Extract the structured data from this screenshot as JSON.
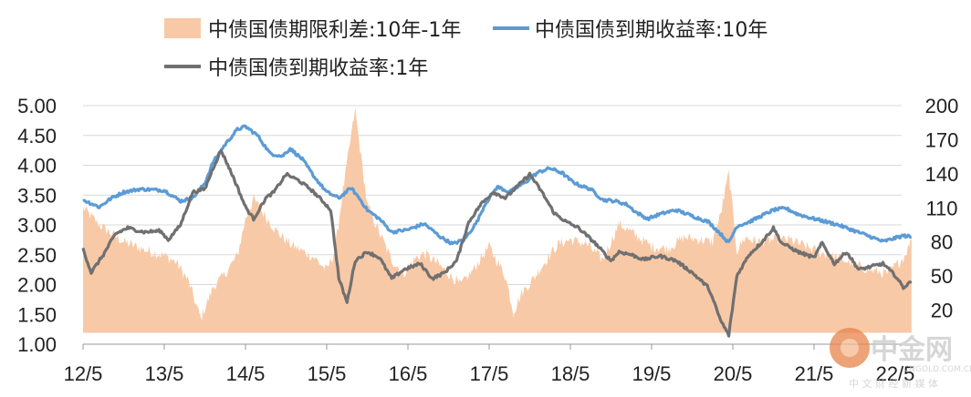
{
  "chart_data": {
    "type": "line",
    "title": "",
    "legend_position": "top",
    "grid": true,
    "x_tick_labels": [
      "12/5",
      "13/5",
      "14/5",
      "15/5",
      "16/5",
      "17/5",
      "18/5",
      "19/5",
      "20/5",
      "21/5",
      "22/5"
    ],
    "y_left": {
      "ticks": [
        "1.00",
        "1.50",
        "2.00",
        "2.50",
        "3.00",
        "3.50",
        "4.00",
        "4.50",
        "5.00"
      ],
      "range": [
        1.0,
        5.0
      ]
    },
    "y_right": {
      "ticks": [
        "20",
        "50",
        "80",
        "110",
        "140",
        "170",
        "200"
      ],
      "range": [
        -10,
        200
      ]
    },
    "series": [
      {
        "name": "中债国债期限利差:10年-1年",
        "type": "area",
        "axis": "right",
        "color": "#F8C9A6",
        "x": [
          0,
          0.2,
          0.5,
          0.8,
          1,
          1.15,
          1.3,
          1.45,
          1.6,
          1.75,
          1.9,
          2.0,
          2.1,
          2.25,
          2.4,
          2.55,
          2.7,
          2.85,
          3.0,
          3.1,
          3.2,
          3.35,
          3.5,
          3.65,
          3.8,
          3.95,
          4.0,
          4.1,
          4.2,
          4.35,
          4.5,
          4.65,
          4.8,
          5.0,
          5.2,
          5.3,
          5.4,
          5.55,
          5.7,
          5.85,
          6.0,
          6.2,
          6.4,
          6.6,
          6.8,
          7.0,
          7.2,
          7.4,
          7.6,
          7.75,
          7.85,
          7.95,
          8.05,
          8.15,
          8.3,
          8.5,
          8.7,
          8.9,
          9.1,
          9.3,
          9.5,
          9.7,
          9.9,
          10.1,
          10.2
        ],
        "values": [
          110,
          95,
          80,
          72,
          68,
          62,
          45,
          12,
          40,
          52,
          68,
          100,
          118,
          102,
          88,
          78,
          72,
          66,
          55,
          72,
          125,
          196,
          112,
          88,
          64,
          52,
          58,
          66,
          70,
          62,
          52,
          42,
          55,
          76,
          50,
          18,
          35,
          48,
          64,
          78,
          82,
          78,
          64,
          96,
          86,
          76,
          74,
          84,
          82,
          80,
          104,
          141,
          72,
          84,
          80,
          82,
          82,
          76,
          70,
          66,
          60,
          55,
          52,
          66,
          82
        ]
      },
      {
        "name": "中债国债到期收益率:10年",
        "type": "line",
        "axis": "left",
        "color": "#5B9BD5",
        "x": [
          0,
          0.2,
          0.35,
          0.5,
          0.7,
          1.0,
          1.2,
          1.35,
          1.5,
          1.6,
          1.75,
          1.9,
          2.0,
          2.15,
          2.3,
          2.45,
          2.55,
          2.7,
          2.85,
          3.0,
          3.15,
          3.3,
          3.4,
          3.5,
          3.65,
          3.8,
          4.0,
          4.2,
          4.4,
          4.55,
          4.7,
          4.85,
          4.95,
          5.1,
          5.25,
          5.45,
          5.6,
          5.75,
          5.9,
          6.0,
          6.1,
          6.25,
          6.4,
          6.55,
          6.7,
          6.8,
          6.95,
          7.1,
          7.3,
          7.5,
          7.7,
          7.85,
          7.95,
          8.05,
          8.2,
          8.35,
          8.5,
          8.65,
          8.8,
          8.95,
          9.1,
          9.3,
          9.5,
          9.7,
          9.85,
          10.0,
          10.1,
          10.2
        ],
        "values": [
          3.42,
          3.3,
          3.45,
          3.55,
          3.6,
          3.58,
          3.4,
          3.45,
          3.7,
          4.05,
          4.35,
          4.6,
          4.65,
          4.5,
          4.2,
          4.15,
          4.28,
          4.1,
          3.8,
          3.55,
          3.45,
          3.62,
          3.45,
          3.25,
          3.1,
          2.88,
          2.92,
          3.02,
          2.8,
          2.68,
          2.76,
          3.05,
          3.35,
          3.64,
          3.55,
          3.72,
          3.88,
          3.95,
          3.87,
          3.75,
          3.67,
          3.6,
          3.42,
          3.4,
          3.34,
          3.22,
          3.1,
          3.18,
          3.25,
          3.15,
          3.05,
          2.85,
          2.7,
          2.98,
          3.05,
          3.15,
          3.25,
          3.28,
          3.18,
          3.12,
          3.07,
          3.0,
          2.9,
          2.8,
          2.72,
          2.78,
          2.82,
          2.8
        ]
      },
      {
        "name": "中债国债到期收益率:1年",
        "type": "line",
        "axis": "left",
        "color": "#707070",
        "x": [
          0,
          0.1,
          0.25,
          0.4,
          0.55,
          0.75,
          0.95,
          1.05,
          1.2,
          1.35,
          1.5,
          1.6,
          1.7,
          1.85,
          2.0,
          2.1,
          2.25,
          2.35,
          2.5,
          2.65,
          2.8,
          2.95,
          3.05,
          3.15,
          3.25,
          3.35,
          3.5,
          3.65,
          3.8,
          3.95,
          4.15,
          4.3,
          4.45,
          4.6,
          4.75,
          4.9,
          5.05,
          5.2,
          5.35,
          5.5,
          5.65,
          5.8,
          5.95,
          6.1,
          6.3,
          6.5,
          6.6,
          6.75,
          6.9,
          7.1,
          7.3,
          7.5,
          7.7,
          7.85,
          7.95,
          8.05,
          8.2,
          8.35,
          8.5,
          8.6,
          8.8,
          9.0,
          9.1,
          9.25,
          9.4,
          9.55,
          9.7,
          9.85,
          10.0,
          10.1,
          10.2
        ],
        "values": [
          2.6,
          2.2,
          2.5,
          2.85,
          2.95,
          2.88,
          2.9,
          2.75,
          3.0,
          3.55,
          3.6,
          3.95,
          4.25,
          3.8,
          3.3,
          3.1,
          3.45,
          3.55,
          3.85,
          3.75,
          3.6,
          3.4,
          3.25,
          2.1,
          1.7,
          2.4,
          2.55,
          2.45,
          2.1,
          2.25,
          2.35,
          2.1,
          2.2,
          2.4,
          3.05,
          3.35,
          3.55,
          3.45,
          3.65,
          3.85,
          3.55,
          3.2,
          3.05,
          2.95,
          2.7,
          2.4,
          2.55,
          2.5,
          2.42,
          2.48,
          2.4,
          2.2,
          1.95,
          1.4,
          1.15,
          2.15,
          2.5,
          2.7,
          2.95,
          2.7,
          2.55,
          2.45,
          2.7,
          2.35,
          2.55,
          2.25,
          2.3,
          2.35,
          2.15,
          1.95,
          2.05
        ]
      }
    ]
  },
  "watermark": {
    "logo_text": "中金网",
    "url_text": "CNGOLD.COM.CN",
    "tagline": "中 文 财 经 新 媒 体"
  }
}
